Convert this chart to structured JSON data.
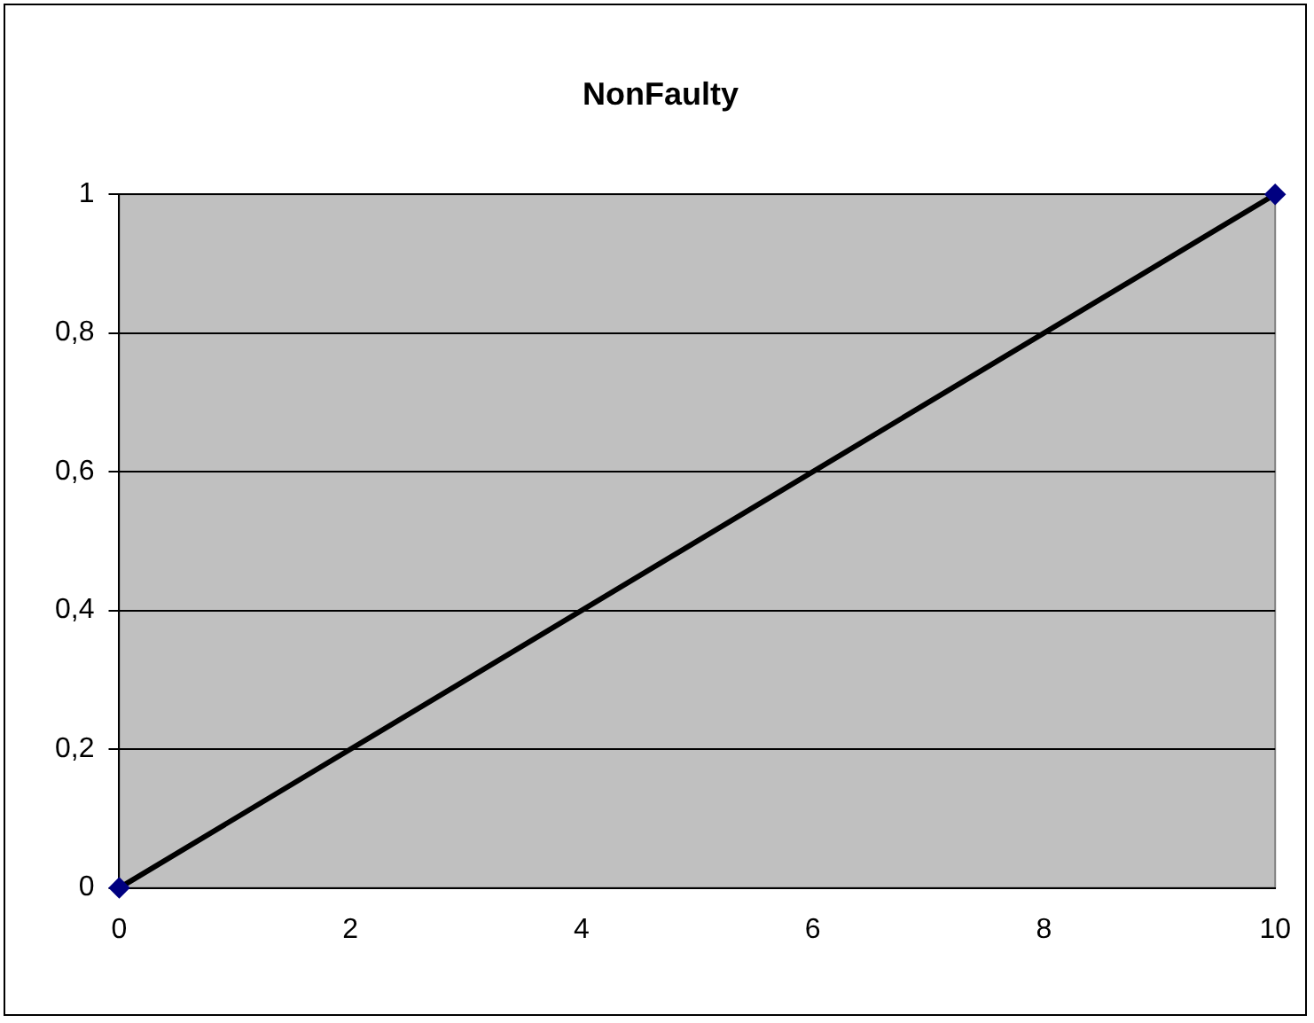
{
  "chart_data": {
    "type": "line",
    "title": "NonFaulty",
    "series": [
      {
        "color": "#000000",
        "x": [
          0,
          10
        ],
        "values": [
          0,
          1
        ]
      }
    ],
    "xlim": [
      0,
      10
    ],
    "xticks": [
      0,
      2,
      4,
      6,
      8,
      10
    ],
    "ylim": [
      0,
      1
    ],
    "yticks": [
      0,
      {
        "value": 0.2,
        "label": "0,2"
      },
      {
        "value": 0.4,
        "label": "0,4"
      },
      {
        "value": 0.6,
        "label": "0,6"
      },
      {
        "value": 0.8,
        "label": "0,8"
      },
      1
    ],
    "grid": "y",
    "legend": false,
    "marker": "diamond",
    "line_style": "solid"
  }
}
